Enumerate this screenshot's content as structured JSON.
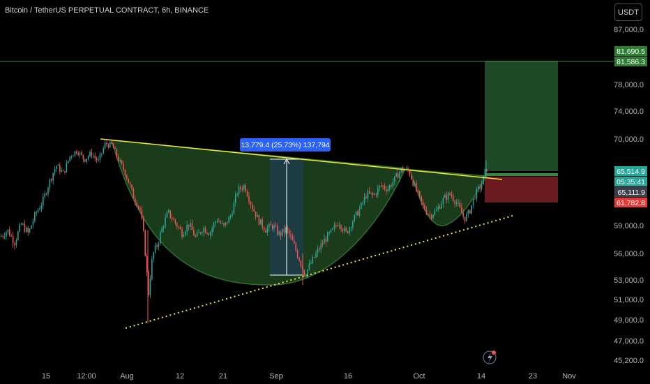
{
  "header": {
    "title": "Bitcoin / TetherUS PERPETUAL CONTRACT, 6h, BINANCE",
    "currency_button": "USDT"
  },
  "colors": {
    "background": "#000000",
    "up": "#26a69a",
    "down": "#ef5350",
    "pattern_fill": "#1e4620",
    "trendline": "#f5e642",
    "support_dots": "#f5e642",
    "target_zone": "#1f4a25",
    "stop_zone": "#6b1a1f",
    "measure": "#2962ff"
  },
  "chart_data": {
    "type": "candlestick",
    "y_scale": [
      {
        "price": 87000,
        "label": "87,000.0"
      },
      {
        "price": 78000,
        "label": "78,000.0"
      },
      {
        "price": 74000,
        "label": "74,000.0"
      },
      {
        "price": 70000,
        "label": "70,000.0"
      },
      {
        "price": 59000,
        "label": "59,000.0"
      },
      {
        "price": 56000,
        "label": "56,000.0"
      },
      {
        "price": 53000,
        "label": "53,000.0"
      },
      {
        "price": 51000,
        "label": "51,000.0"
      },
      {
        "price": 49000,
        "label": "49,000.0"
      },
      {
        "price": 47000,
        "label": "47,000.0"
      },
      {
        "price": 45200,
        "label": "45,200.0"
      }
    ],
    "x_labels": [
      "15",
      "12:00",
      "Aug",
      "12",
      "21",
      "Sep",
      "16",
      "Oct",
      "14",
      "23",
      "Nov"
    ],
    "price_markers": [
      {
        "label": "81,690.5",
        "price": 81690.5,
        "color": "#2e7d32"
      },
      {
        "label": "81,586.3",
        "price": 81586.3,
        "color": "#2e7d32"
      },
      {
        "label": "65,514.9",
        "price": 65514.9,
        "color": "#26a69a"
      },
      {
        "label": "05:35:41",
        "price": 64600,
        "color": "#26a69a"
      },
      {
        "label": "65,111.9",
        "price": 65111.9,
        "color": "#3a3f4b"
      },
      {
        "label": "61,782.8",
        "price": 61782.8,
        "color": "#e53935"
      }
    ],
    "measure_label": "13,779.4 (25.73%) 137,794",
    "trade": {
      "target": 81690.5,
      "entry": 65514.9,
      "stop": 61782.8
    },
    "horizontal_line": 81586.3,
    "series": [
      {
        "x": 0,
        "y": 57800
      },
      {
        "x": 10,
        "y": 58500
      },
      {
        "x": 20,
        "y": 57200
      },
      {
        "x": 30,
        "y": 59200
      },
      {
        "x": 40,
        "y": 58100
      },
      {
        "x": 50,
        "y": 60400
      },
      {
        "x": 60,
        "y": 61800
      },
      {
        "x": 70,
        "y": 64200
      },
      {
        "x": 80,
        "y": 66300
      },
      {
        "x": 90,
        "y": 65200
      },
      {
        "x": 100,
        "y": 67700
      },
      {
        "x": 110,
        "y": 68400
      },
      {
        "x": 120,
        "y": 67100
      },
      {
        "x": 130,
        "y": 68000
      },
      {
        "x": 140,
        "y": 66800
      },
      {
        "x": 150,
        "y": 69300
      },
      {
        "x": 160,
        "y": 69100
      },
      {
        "x": 170,
        "y": 66900
      },
      {
        "x": 180,
        "y": 65100
      },
      {
        "x": 190,
        "y": 62600
      },
      {
        "x": 200,
        "y": 61000
      },
      {
        "x": 206,
        "y": 57500
      },
      {
        "x": 212,
        "y": 51500
      },
      {
        "x": 218,
        "y": 55800
      },
      {
        "x": 225,
        "y": 57000
      },
      {
        "x": 232,
        "y": 58800
      },
      {
        "x": 240,
        "y": 60600
      },
      {
        "x": 250,
        "y": 59400
      },
      {
        "x": 260,
        "y": 58200
      },
      {
        "x": 270,
        "y": 59200
      },
      {
        "x": 280,
        "y": 57600
      },
      {
        "x": 290,
        "y": 58800
      },
      {
        "x": 300,
        "y": 58200
      },
      {
        "x": 310,
        "y": 59800
      },
      {
        "x": 320,
        "y": 58800
      },
      {
        "x": 330,
        "y": 60200
      },
      {
        "x": 340,
        "y": 63200
      },
      {
        "x": 350,
        "y": 63800
      },
      {
        "x": 360,
        "y": 61400
      },
      {
        "x": 370,
        "y": 59600
      },
      {
        "x": 380,
        "y": 58600
      },
      {
        "x": 390,
        "y": 59000
      },
      {
        "x": 400,
        "y": 58000
      },
      {
        "x": 410,
        "y": 58600
      },
      {
        "x": 420,
        "y": 57000
      },
      {
        "x": 430,
        "y": 55000
      },
      {
        "x": 436,
        "y": 53600
      },
      {
        "x": 445,
        "y": 54900
      },
      {
        "x": 455,
        "y": 56300
      },
      {
        "x": 465,
        "y": 57500
      },
      {
        "x": 475,
        "y": 58300
      },
      {
        "x": 485,
        "y": 59500
      },
      {
        "x": 495,
        "y": 58100
      },
      {
        "x": 505,
        "y": 59600
      },
      {
        "x": 515,
        "y": 61000
      },
      {
        "x": 525,
        "y": 62800
      },
      {
        "x": 535,
        "y": 62600
      },
      {
        "x": 545,
        "y": 63800
      },
      {
        "x": 555,
        "y": 63400
      },
      {
        "x": 565,
        "y": 64500
      },
      {
        "x": 575,
        "y": 65800
      },
      {
        "x": 585,
        "y": 65600
      },
      {
        "x": 595,
        "y": 63400
      },
      {
        "x": 605,
        "y": 61400
      },
      {
        "x": 615,
        "y": 60200
      },
      {
        "x": 625,
        "y": 60800
      },
      {
        "x": 635,
        "y": 62200
      },
      {
        "x": 645,
        "y": 62800
      },
      {
        "x": 655,
        "y": 61600
      },
      {
        "x": 665,
        "y": 59800
      },
      {
        "x": 672,
        "y": 60600
      },
      {
        "x": 680,
        "y": 62600
      },
      {
        "x": 690,
        "y": 64000
      },
      {
        "x": 696,
        "y": 65800
      }
    ]
  }
}
